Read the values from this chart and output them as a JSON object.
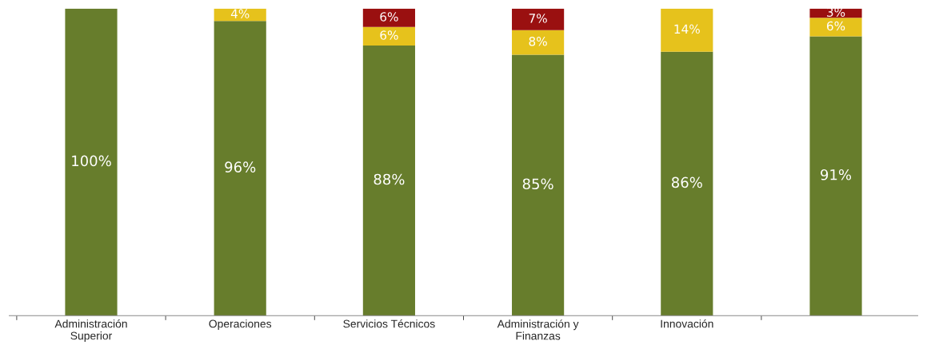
{
  "chart_data": {
    "type": "bar",
    "stacked": true,
    "categories": [
      "Administración\nSuperior",
      "Operaciones",
      "Servicios Técnicos",
      "Administración y\nFinanzas",
      "Innovación",
      null
    ],
    "series": [
      {
        "color": "#677d2c",
        "values": [
          100,
          96,
          88,
          85,
          86,
          91
        ],
        "value_labels": [
          "100%",
          "96%",
          "88%",
          "85%",
          "86%",
          "91%"
        ]
      },
      {
        "color": "#e6c21c",
        "values": [
          null,
          4,
          6,
          8,
          14,
          6
        ],
        "value_labels": [
          null,
          "4%",
          "6%",
          "8%",
          "14%",
          "6%"
        ]
      },
      {
        "color": "#9a1010",
        "values": [
          null,
          null,
          6,
          7,
          null,
          3
        ],
        "value_labels": [
          null,
          null,
          "6%",
          "7%",
          null,
          "3%"
        ]
      }
    ],
    "tick_labels": "x",
    "grid": false,
    "legend": false
  }
}
